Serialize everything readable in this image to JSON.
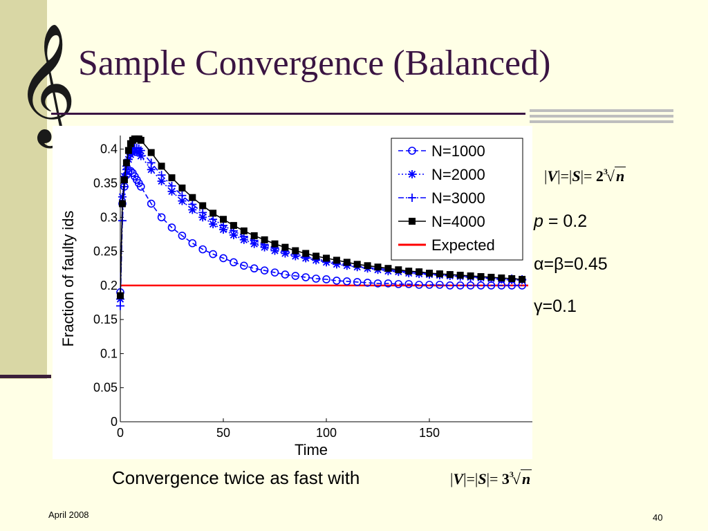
{
  "slide": {
    "title": "Sample Convergence (Balanced)",
    "clef_glyph": "𝄞",
    "formula1": {
      "lhs_left": "|",
      "v": "V",
      "mid": "|=|",
      "s": "S",
      "rhs": "|= ",
      "coef": "2",
      "root_index": "3",
      "n": "n"
    },
    "param_p_symbol": "p",
    "param_p_rest": " = 0.2",
    "param_ab": "α=β=0.45",
    "param_g": "γ=0.1",
    "caption": "Convergence twice as fast with",
    "formula2": {
      "lhs_left": "|",
      "v": "V",
      "mid": "|=|",
      "s": "S",
      "rhs": "|= ",
      "coef": "3",
      "root_index": "3",
      "n": "n"
    },
    "date": "April 2008",
    "page": "40"
  },
  "colors": {
    "background": "#FFFFE6",
    "band": "#D9D7A5",
    "title": "#3A1442",
    "blue": "#0000FF",
    "black": "#000000",
    "red": "#FF0000"
  },
  "chart_data": {
    "type": "line",
    "xlabel": "Time",
    "ylabel": "Fraction of faulty ids",
    "xlim": [
      0,
      200
    ],
    "ylim": [
      0,
      0.42
    ],
    "xticks": [
      0,
      50,
      100,
      150
    ],
    "yticks": [
      0,
      0.05,
      0.1,
      0.15,
      0.2,
      0.25,
      0.3,
      0.35,
      0.4
    ],
    "legend_position": "top-right",
    "series": [
      {
        "name": "N=1000",
        "color": "#0000FF",
        "line": "dashed",
        "marker": "circle",
        "x": [
          0,
          1,
          2,
          3,
          4,
          5,
          6,
          7,
          8,
          9,
          10,
          15,
          20,
          25,
          30,
          35,
          40,
          45,
          50,
          55,
          60,
          65,
          70,
          75,
          80,
          85,
          90,
          95,
          100,
          105,
          110,
          115,
          120,
          125,
          130,
          135,
          140,
          145,
          150,
          155,
          160,
          165,
          170,
          175,
          180,
          185,
          190,
          195
        ],
        "y": [
          0.19,
          0.32,
          0.345,
          0.362,
          0.368,
          0.368,
          0.365,
          0.36,
          0.355,
          0.35,
          0.345,
          0.32,
          0.3,
          0.285,
          0.273,
          0.262,
          0.253,
          0.246,
          0.24,
          0.234,
          0.229,
          0.225,
          0.222,
          0.219,
          0.216,
          0.214,
          0.212,
          0.21,
          0.209,
          0.207,
          0.206,
          0.205,
          0.204,
          0.203,
          0.203,
          0.202,
          0.202,
          0.201,
          0.201,
          0.201,
          0.2,
          0.2,
          0.2,
          0.2,
          0.2,
          0.2,
          0.2,
          0.2
        ]
      },
      {
        "name": "N=2000",
        "color": "#0000FF",
        "line": "dotted",
        "marker": "asterisk",
        "x": [
          0,
          1,
          2,
          3,
          4,
          5,
          6,
          7,
          8,
          9,
          10,
          15,
          20,
          25,
          30,
          35,
          40,
          45,
          50,
          55,
          60,
          65,
          70,
          75,
          80,
          85,
          90,
          95,
          100,
          105,
          110,
          115,
          120,
          125,
          130,
          135,
          140,
          145,
          150,
          155,
          160,
          165,
          170,
          175,
          180,
          185,
          190,
          195
        ],
        "y": [
          0.18,
          0.33,
          0.36,
          0.375,
          0.385,
          0.392,
          0.395,
          0.396,
          0.396,
          0.395,
          0.39,
          0.37,
          0.353,
          0.338,
          0.324,
          0.311,
          0.3,
          0.29,
          0.282,
          0.274,
          0.267,
          0.261,
          0.256,
          0.251,
          0.247,
          0.243,
          0.24,
          0.237,
          0.234,
          0.231,
          0.229,
          0.227,
          0.225,
          0.223,
          0.221,
          0.22,
          0.218,
          0.217,
          0.216,
          0.215,
          0.214,
          0.213,
          0.212,
          0.211,
          0.21,
          0.209,
          0.208,
          0.208
        ]
      },
      {
        "name": "N=3000",
        "color": "#0000FF",
        "line": "dashdot",
        "marker": "plus",
        "x": [
          0,
          1,
          2,
          3,
          4,
          5,
          6,
          7,
          8,
          9,
          10,
          15,
          20,
          25,
          30,
          35,
          40,
          45,
          50,
          55,
          60,
          65,
          70,
          75,
          80,
          85,
          90,
          95,
          100,
          105,
          110,
          115,
          120,
          125,
          130,
          135,
          140,
          145,
          150,
          155,
          160,
          165,
          170,
          175,
          180,
          185,
          190,
          195
        ],
        "y": [
          0.17,
          0.295,
          0.345,
          0.37,
          0.385,
          0.395,
          0.4,
          0.402,
          0.402,
          0.401,
          0.398,
          0.38,
          0.362,
          0.346,
          0.332,
          0.319,
          0.307,
          0.297,
          0.288,
          0.28,
          0.272,
          0.266,
          0.26,
          0.255,
          0.25,
          0.246,
          0.242,
          0.239,
          0.236,
          0.233,
          0.231,
          0.228,
          0.226,
          0.225,
          0.223,
          0.221,
          0.22,
          0.219,
          0.217,
          0.216,
          0.215,
          0.214,
          0.213,
          0.212,
          0.211,
          0.21,
          0.21,
          0.209
        ]
      },
      {
        "name": "N=4000",
        "color": "#000000",
        "line": "solid",
        "marker": "square",
        "x": [
          0,
          1,
          2,
          3,
          4,
          5,
          6,
          7,
          8,
          9,
          10,
          15,
          20,
          25,
          30,
          35,
          40,
          45,
          50,
          55,
          60,
          65,
          70,
          75,
          80,
          85,
          90,
          95,
          100,
          105,
          110,
          115,
          120,
          125,
          130,
          135,
          140,
          145,
          150,
          155,
          160,
          165,
          170,
          175,
          180,
          185,
          190,
          195
        ],
        "y": [
          0.185,
          0.32,
          0.355,
          0.38,
          0.398,
          0.408,
          0.413,
          0.415,
          0.415,
          0.415,
          0.413,
          0.395,
          0.375,
          0.358,
          0.343,
          0.329,
          0.317,
          0.306,
          0.297,
          0.288,
          0.28,
          0.273,
          0.267,
          0.261,
          0.256,
          0.251,
          0.247,
          0.243,
          0.24,
          0.237,
          0.234,
          0.231,
          0.229,
          0.227,
          0.225,
          0.223,
          0.221,
          0.22,
          0.218,
          0.217,
          0.216,
          0.215,
          0.214,
          0.213,
          0.212,
          0.211,
          0.21,
          0.209
        ]
      },
      {
        "name": "Expected",
        "color": "#FF0000",
        "line": "solid",
        "marker": "none",
        "x": [
          0,
          198
        ],
        "y": [
          0.2,
          0.2
        ]
      }
    ]
  }
}
